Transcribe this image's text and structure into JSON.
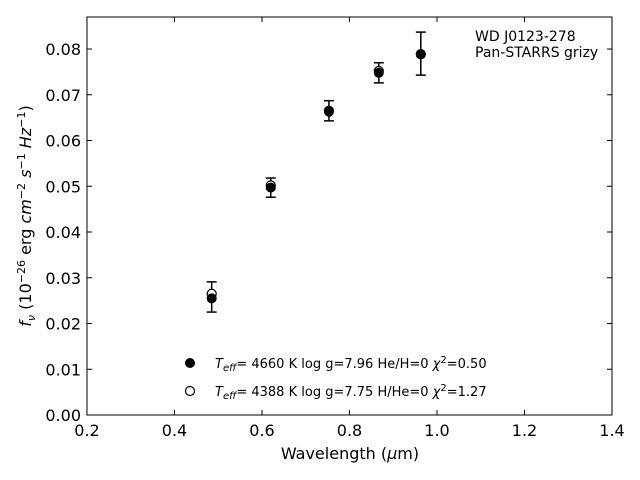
{
  "chart_data": {
    "type": "scatter",
    "xlabel": "Wavelength (μm)",
    "ylabel": "f_ν (10^-26 erg cm^-2 s^-1 Hz^-1)",
    "xlim": [
      0.2,
      1.4
    ],
    "ylim": [
      0.0,
      0.087
    ],
    "x_ticks": [
      "0.2",
      "0.4",
      "0.6",
      "0.8",
      "1.0",
      "1.2",
      "1.4"
    ],
    "y_ticks": [
      "0.00",
      "0.01",
      "0.02",
      "0.03",
      "0.04",
      "0.05",
      "0.06",
      "0.07",
      "0.08"
    ],
    "grid": false,
    "annotation": [
      "WD J0123-278",
      "Pan-STARRS grizy"
    ],
    "observed": {
      "x": [
        0.485,
        0.62,
        0.753,
        0.867,
        0.963
      ],
      "y": [
        0.0258,
        0.0497,
        0.0665,
        0.0748,
        0.079
      ],
      "yerr": [
        0.0033,
        0.0021,
        0.0022,
        0.0022,
        0.0047
      ]
    },
    "series": [
      {
        "label": {
          "teff": "4660 K",
          "logg": "log g=7.96",
          "comp": "He/H=0",
          "chi": "=0.50"
        },
        "marker": "filled",
        "x": [
          0.485,
          0.62,
          0.753,
          0.867,
          0.963
        ],
        "y": [
          0.0255,
          0.0497,
          0.0663,
          0.0748,
          0.0788
        ]
      },
      {
        "label": {
          "teff": "4388 K",
          "logg": "log g=7.75",
          "comp": "H/He=0",
          "chi": "=1.27"
        },
        "marker": "open",
        "x": [
          0.485,
          0.62,
          0.753,
          0.867,
          0.963
        ],
        "y": [
          0.0265,
          0.0502,
          0.0665,
          0.0752,
          0.0789
        ]
      }
    ],
    "legend_position": "bottom-center"
  }
}
